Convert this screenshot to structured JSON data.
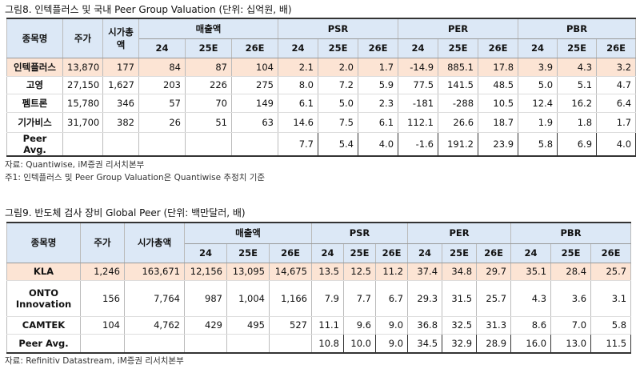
{
  "tables": [
    {
      "title": "그림8.  인텍플러스 및 국내 Peer Group Valuation (단위: 십억원, 배)",
      "headers": [
        "종목명",
        "주가",
        "시가총액"
      ],
      "groups": [
        "매출액",
        "PSR",
        "PER",
        "PBR"
      ],
      "subheaders": [
        "24",
        "25E",
        "26E",
        "24",
        "25E",
        "26E",
        "24",
        "25E",
        "26E",
        "24",
        "25E",
        "26E"
      ],
      "rows": [
        [
          "인텍플러스",
          "13,870",
          "177",
          "84",
          "87",
          "104",
          "2.1",
          "2.0",
          "1.7",
          "-14.9",
          "885.1",
          "17.8",
          "3.9",
          "4.3",
          "3.2"
        ],
        [
          "고영",
          "27,150",
          "1,627",
          "203",
          "226",
          "275",
          "8.0",
          "7.2",
          "5.9",
          "77.5",
          "141.5",
          "48.5",
          "5.0",
          "5.1",
          "4.7"
        ],
        [
          "펨트론",
          "15,780",
          "346",
          "57",
          "70",
          "149",
          "6.1",
          "5.0",
          "2.3",
          "-181",
          "-288",
          "10.5",
          "12.4",
          "16.2",
          "6.4"
        ],
        [
          "기가비스",
          "31,700",
          "382",
          "26",
          "51",
          "63",
          "14.6",
          "7.5",
          "6.1",
          "112.1",
          "26.6",
          "18.7",
          "1.9",
          "1.8",
          "1.7"
        ],
        [
          "Peer Avg.",
          null,
          null,
          null,
          null,
          null,
          "7.7",
          "5.4",
          "4.0",
          "-1.6",
          "191.2",
          "23.9",
          "5.8",
          "6.9",
          "4.0"
        ]
      ],
      "notes": [
        "자료: Quantiwise, iM증권 리서치본부",
        "주1: 인텍플러스 및 Peer Group Valuation은 Quantiwise 추정치 기준"
      ]
    },
    {
      "title": "그림9.  반도체 검사 장비 Global Peer (단위: 백만달러, 배)",
      "headers": [
        "종목명",
        "주가",
        "시가총액"
      ],
      "groups": [
        "매출액",
        "PSR",
        "PER",
        "PBR"
      ],
      "subheaders": [
        "24",
        "25E",
        "26E",
        "24",
        "25E",
        "26E",
        "24",
        "25E",
        "26E",
        "24",
        "25E",
        "26E"
      ],
      "rows": [
        [
          "KLA",
          "1,246",
          "163,671",
          "12,156",
          "13,095",
          "14,675",
          "13.5",
          "12.5",
          "11.2",
          "37.4",
          "34.8",
          "29.7",
          "35.1",
          "28.4",
          "25.7"
        ],
        [
          "ONTO Innovation",
          "156",
          "7,764",
          "987",
          "1,004",
          "1,166",
          "7.9",
          "7.7",
          "6.7",
          "29.3",
          "31.5",
          "25.7",
          "4.3",
          "3.6",
          "3.1"
        ],
        [
          "CAMTEK",
          "104",
          "4,762",
          "429",
          "495",
          "527",
          "11.1",
          "9.6",
          "9.0",
          "36.8",
          "32.5",
          "31.3",
          "8.6",
          "7.0",
          "5.8"
        ],
        [
          "Peer Avg.",
          null,
          null,
          null,
          null,
          null,
          "10.8",
          "10.0",
          "9.0",
          "34.5",
          "32.9",
          "28.9",
          "16.0",
          "13.0",
          "11.5"
        ]
      ],
      "notes": [
        "자료: Refinitiv Datastream, iM증권 리서치본부"
      ]
    }
  ]
}
